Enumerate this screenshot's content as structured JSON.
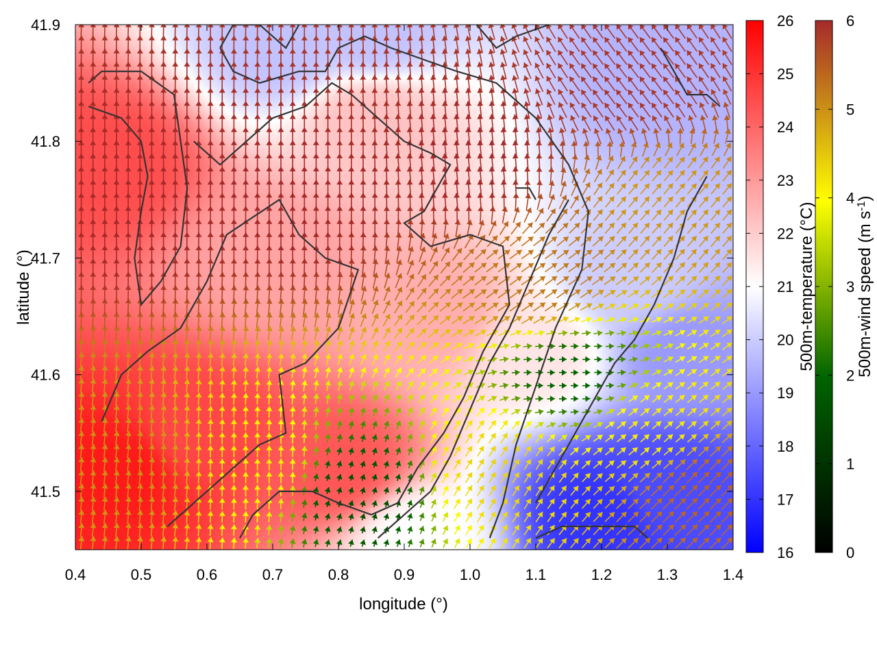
{
  "chart_data": {
    "type": "heatmap",
    "title": "",
    "xlabel": "longitude (°)",
    "ylabel": "latitude (°)",
    "xlim": [
      0.4,
      1.4
    ],
    "ylim": [
      41.45,
      41.9
    ],
    "x_ticks": [
      "0.4",
      "0.5",
      "0.6",
      "0.7",
      "0.8",
      "0.9",
      "1.0",
      "1.1",
      "1.2",
      "1.3",
      "1.4"
    ],
    "y_ticks": [
      "41.5",
      "41.6",
      "41.7",
      "41.8",
      "41.9"
    ],
    "temperature": {
      "label": "500m-temperature (°C)",
      "range": [
        16,
        26
      ],
      "ticks": [
        "16",
        "17",
        "18",
        "19",
        "20",
        "21",
        "22",
        "23",
        "24",
        "25",
        "26"
      ],
      "colors": [
        "#0000ff",
        "#ffffff",
        "#ff0000"
      ],
      "regions": [
        {
          "lon": 0.45,
          "lat": 41.78,
          "value": 24.5
        },
        {
          "lon": 0.47,
          "lat": 41.52,
          "value": 25.5
        },
        {
          "lon": 0.58,
          "lat": 41.55,
          "value": 24.6
        },
        {
          "lon": 0.8,
          "lat": 41.52,
          "value": 24.3
        },
        {
          "lon": 0.7,
          "lat": 41.7,
          "value": 22.8
        },
        {
          "lon": 0.85,
          "lat": 41.82,
          "value": 22.2
        },
        {
          "lon": 0.95,
          "lat": 41.65,
          "value": 22.6
        },
        {
          "lon": 1.1,
          "lat": 41.62,
          "value": 21.5
        },
        {
          "lon": 1.25,
          "lat": 41.68,
          "value": 20.0
        },
        {
          "lon": 1.33,
          "lat": 41.62,
          "value": 19.0
        },
        {
          "lon": 1.3,
          "lat": 41.85,
          "value": 19.5
        },
        {
          "lon": 1.2,
          "lat": 41.48,
          "value": 17.0
        },
        {
          "lon": 1.3,
          "lat": 41.5,
          "value": 17.5
        },
        {
          "lon": 0.72,
          "lat": 41.88,
          "value": 19.8
        },
        {
          "lon": 0.85,
          "lat": 41.89,
          "value": 19.8
        },
        {
          "lon": 0.92,
          "lat": 41.46,
          "value": 21.0
        }
      ],
      "contours": [
        {
          "points": [
            [
              0.42,
              41.83
            ],
            [
              0.47,
              41.82
            ],
            [
              0.5,
              41.8
            ],
            [
              0.51,
              41.77
            ],
            [
              0.5,
              41.74
            ],
            [
              0.49,
              41.7
            ],
            [
              0.5,
              41.66
            ],
            [
              0.53,
              41.68
            ],
            [
              0.56,
              41.71
            ],
            [
              0.57,
              41.76
            ],
            [
              0.56,
              41.8
            ],
            [
              0.55,
              41.84
            ],
            [
              0.5,
              41.86
            ],
            [
              0.44,
              41.86
            ],
            [
              0.42,
              41.85
            ]
          ]
        },
        {
          "points": [
            [
              0.44,
              41.56
            ],
            [
              0.47,
              41.6
            ],
            [
              0.51,
              41.62
            ],
            [
              0.56,
              41.64
            ],
            [
              0.6,
              41.68
            ],
            [
              0.63,
              41.72
            ],
            [
              0.71,
              41.75
            ],
            [
              0.74,
              41.72
            ],
            [
              0.78,
              41.7
            ],
            [
              0.83,
              41.69
            ],
            [
              0.8,
              41.64
            ],
            [
              0.75,
              41.61
            ],
            [
              0.71,
              41.6
            ],
            [
              0.72,
              41.55
            ],
            [
              0.68,
              41.54
            ],
            [
              0.64,
              41.52
            ],
            [
              0.6,
              41.5
            ],
            [
              0.54,
              41.47
            ]
          ]
        },
        {
          "points": [
            [
              0.58,
              41.8
            ],
            [
              0.62,
              41.78
            ],
            [
              0.66,
              41.8
            ],
            [
              0.7,
              41.82
            ],
            [
              0.75,
              41.83
            ],
            [
              0.79,
              41.85
            ],
            [
              0.82,
              41.84
            ],
            [
              0.86,
              41.82
            ],
            [
              0.9,
              41.8
            ],
            [
              0.94,
              41.79
            ],
            [
              0.97,
              41.78
            ],
            [
              0.93,
              41.74
            ],
            [
              0.9,
              41.73
            ],
            [
              0.94,
              41.71
            ],
            [
              1.0,
              41.72
            ],
            [
              1.05,
              41.71
            ],
            [
              1.06,
              41.66
            ],
            [
              1.02,
              41.62
            ],
            [
              0.99,
              41.58
            ],
            [
              0.96,
              41.55
            ],
            [
              0.92,
              41.52
            ],
            [
              0.89,
              41.49
            ],
            [
              0.85,
              41.48
            ],
            [
              0.8,
              41.49
            ],
            [
              0.76,
              41.5
            ],
            [
              0.71,
              41.5
            ],
            [
              0.67,
              41.48
            ],
            [
              0.65,
              41.46
            ]
          ]
        },
        {
          "points": [
            [
              0.62,
              41.88
            ],
            [
              0.64,
              41.86
            ],
            [
              0.68,
              41.85
            ],
            [
              0.74,
              41.86
            ],
            [
              0.78,
              41.86
            ],
            [
              0.8,
              41.88
            ],
            [
              0.84,
              41.89
            ],
            [
              0.88,
              41.88
            ],
            [
              0.93,
              41.87
            ],
            [
              0.98,
              41.86
            ],
            [
              1.04,
              41.85
            ],
            [
              1.1,
              41.82
            ],
            [
              1.15,
              41.78
            ],
            [
              1.18,
              41.74
            ],
            [
              1.17,
              41.69
            ],
            [
              1.13,
              41.64
            ],
            [
              1.1,
              41.59
            ],
            [
              1.07,
              41.54
            ],
            [
              1.05,
              41.49
            ],
            [
              1.03,
              41.46
            ]
          ]
        },
        {
          "points": [
            [
              0.86,
              41.46
            ],
            [
              0.9,
              41.48
            ],
            [
              0.94,
              41.5
            ],
            [
              0.97,
              41.53
            ],
            [
              1.0,
              41.57
            ],
            [
              1.03,
              41.61
            ],
            [
              1.06,
              41.64
            ],
            [
              1.09,
              41.68
            ],
            [
              1.12,
              41.72
            ],
            [
              1.15,
              41.75
            ]
          ]
        },
        {
          "points": [
            [
              0.62,
              41.88
            ],
            [
              0.64,
              41.9
            ],
            [
              0.68,
              41.9
            ],
            [
              0.72,
              41.88
            ],
            [
              0.74,
              41.9
            ]
          ]
        },
        {
          "points": [
            [
              1.1,
              41.46
            ],
            [
              1.14,
              41.47
            ],
            [
              1.18,
              41.47
            ],
            [
              1.22,
              41.47
            ],
            [
              1.25,
              41.47
            ],
            [
              1.27,
              41.46
            ]
          ]
        },
        {
          "points": [
            [
              1.1,
              41.49
            ],
            [
              1.13,
              41.52
            ],
            [
              1.16,
              41.55
            ],
            [
              1.19,
              41.58
            ],
            [
              1.22,
              41.61
            ],
            [
              1.25,
              41.63
            ],
            [
              1.28,
              41.66
            ],
            [
              1.31,
              41.7
            ],
            [
              1.33,
              41.74
            ],
            [
              1.36,
              41.77
            ]
          ]
        },
        {
          "points": [
            [
              1.29,
              41.88
            ],
            [
              1.31,
              41.86
            ],
            [
              1.33,
              41.84
            ],
            [
              1.36,
              41.84
            ],
            [
              1.38,
              41.83
            ]
          ]
        },
        {
          "points": [
            [
              1.01,
              41.9
            ],
            [
              1.04,
              41.88
            ],
            [
              1.07,
              41.89
            ],
            [
              1.12,
              41.9
            ]
          ]
        },
        {
          "points": [
            [
              1.07,
              41.76
            ],
            [
              1.09,
              41.76
            ],
            [
              1.1,
              41.75
            ]
          ]
        }
      ]
    },
    "wind": {
      "label": "500m-wind speed (m s-1)",
      "range": [
        0,
        6
      ],
      "ticks": [
        "0",
        "1",
        "2",
        "3",
        "4",
        "5",
        "6"
      ],
      "colors": [
        "#000000",
        "#006400",
        "#ffff00",
        "#c47f1a",
        "#a52a2a"
      ],
      "regions": [
        {
          "lon": 0.5,
          "lat": 41.75,
          "u": 0.0,
          "v": 1.0,
          "speed": 6.0
        },
        {
          "lon": 0.75,
          "lat": 41.75,
          "u": 0.0,
          "v": 1.0,
          "speed": 6.0
        },
        {
          "lon": 1.0,
          "lat": 41.78,
          "u": -0.1,
          "v": 1.0,
          "speed": 6.0
        },
        {
          "lon": 1.25,
          "lat": 41.85,
          "u": -0.6,
          "v": 0.8,
          "speed": 5.8
        },
        {
          "lon": 0.48,
          "lat": 41.52,
          "u": 0.1,
          "v": 1.0,
          "speed": 4.3
        },
        {
          "lon": 0.68,
          "lat": 41.52,
          "u": 0.0,
          "v": 1.0,
          "speed": 3.2
        },
        {
          "lon": 0.82,
          "lat": 41.5,
          "u": 0.3,
          "v": 1.0,
          "speed": 1.2
        },
        {
          "lon": 1.15,
          "lat": 41.6,
          "u": 1.0,
          "v": 0.0,
          "speed": 1.5
        },
        {
          "lon": 1.28,
          "lat": 41.55,
          "u": 0.7,
          "v": 0.6,
          "speed": 3.2
        },
        {
          "lon": 1.3,
          "lat": 41.75,
          "u": 0.6,
          "v": 0.7,
          "speed": 4.2
        },
        {
          "lon": 1.1,
          "lat": 41.68,
          "u": 0.7,
          "v": 0.5,
          "speed": 4.6
        },
        {
          "lon": 1.35,
          "lat": 41.5,
          "u": 0.6,
          "v": 0.6,
          "speed": 5.0
        },
        {
          "lon": 1.05,
          "lat": 41.52,
          "u": 0.5,
          "v": 0.8,
          "speed": 3.5
        }
      ]
    }
  }
}
